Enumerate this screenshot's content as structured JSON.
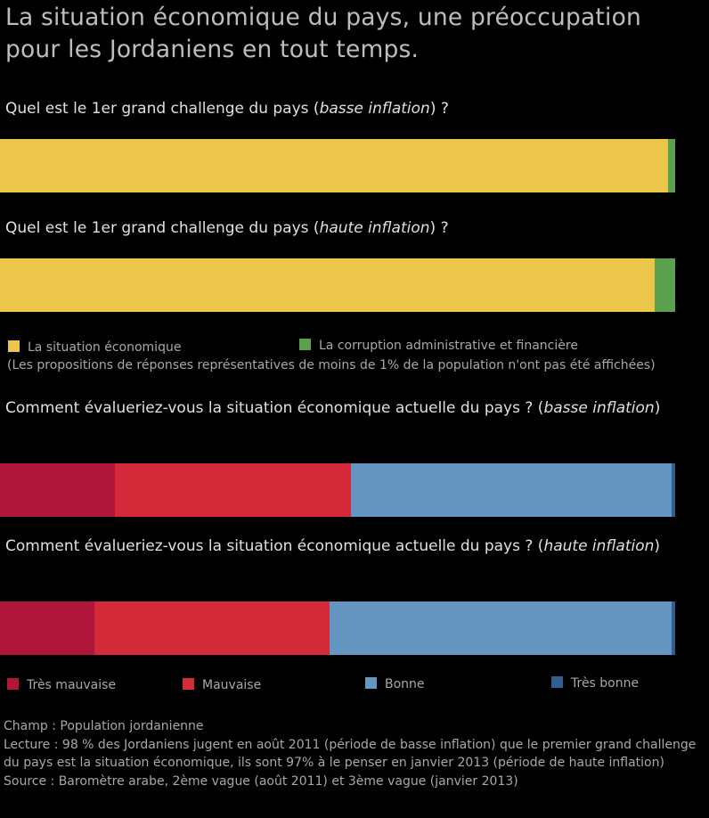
{
  "title": "La situation économique du pays, une préoccupation pour les Jordaniens en tout temps.",
  "q1": {
    "prefix": "Quel est le 1er grand challenge du pays (",
    "italic": "basse inflation",
    "suffix": ") ?"
  },
  "q2": {
    "prefix": "Quel est le 1er grand challenge du pays (",
    "italic": "haute inflation",
    "suffix": ") ?"
  },
  "q3": {
    "prefix": "Comment évalueriez-vous la situation économique actuelle du pays ? (",
    "italic": "basse inflation",
    "suffix": ")"
  },
  "q4": {
    "prefix": "Comment évalueriez-vous la situation économique actuelle du pays ? (",
    "italic": "haute inflation",
    "suffix": ")"
  },
  "legend1": {
    "items": [
      {
        "label": "La situation économique",
        "color": "#ebc64a"
      },
      {
        "label": "La corruption administrative et financière",
        "color": "#5aa04f"
      }
    ],
    "note": "(Les propositions de réponses représentatives de moins de 1% de la population n'ont pas été affichées)"
  },
  "legend2": {
    "items": [
      {
        "label": "Très mauvaise",
        "color": "#b0163a"
      },
      {
        "label": "Mauvaise",
        "color": "#d42a3a"
      },
      {
        "label": "Bonne",
        "color": "#6496c1"
      },
      {
        "label": "Très bonne",
        "color": "#2f5f8f"
      }
    ]
  },
  "footer": {
    "champ": "Champ : Population jordanienne",
    "lecture": "Lecture :  98 % des Jordaniens jugent en août 2011 (période de basse inflation) que le premier grand challenge du pays est la situation économique, ils sont 97% à le penser en janvier 2013 (période de haute inflation)",
    "source": "Source : Baromètre arabe, 2ème vague (août 2011) et 3ème vague (janvier 2013)"
  },
  "chart_data": [
    {
      "type": "bar",
      "orientation": "horizontal-stacked",
      "title": "Quel est le 1er grand challenge du pays (basse inflation) ?",
      "series": [
        {
          "name": "La situation économique",
          "values": [
            98
          ]
        },
        {
          "name": "La corruption administrative et financière",
          "values": [
            1
          ]
        }
      ],
      "colors": [
        "#ebc64a",
        "#5aa04f"
      ]
    },
    {
      "type": "bar",
      "orientation": "horizontal-stacked",
      "title": "Quel est le 1er grand challenge du pays (haute inflation) ?",
      "series": [
        {
          "name": "La situation économique",
          "values": [
            97
          ]
        },
        {
          "name": "La corruption administrative et financière",
          "values": [
            3
          ]
        }
      ],
      "colors": [
        "#ebc64a",
        "#5aa04f"
      ]
    },
    {
      "type": "bar",
      "orientation": "horizontal-stacked",
      "title": "Comment évalueriez-vous la situation économique actuelle du pays ? (basse inflation)",
      "series": [
        {
          "name": "Très mauvaise",
          "values": [
            17
          ]
        },
        {
          "name": "Mauvaise",
          "values": [
            35
          ]
        },
        {
          "name": "Bonne",
          "values": [
            47.5
          ]
        },
        {
          "name": "Très bonne",
          "values": [
            0.5
          ]
        }
      ],
      "colors": [
        "#b0163a",
        "#d42a3a",
        "#6496c1",
        "#2f5f8f"
      ]
    },
    {
      "type": "bar",
      "orientation": "horizontal-stacked",
      "title": "Comment évalueriez-vous la situation économique actuelle du pays ? (haute inflation)",
      "series": [
        {
          "name": "Très mauvaise",
          "values": [
            14
          ]
        },
        {
          "name": "Mauvaise",
          "values": [
            35
          ]
        },
        {
          "name": "Bonne",
          "values": [
            51
          ]
        },
        {
          "name": "Très bonne",
          "values": [
            0.5
          ]
        }
      ],
      "colors": [
        "#b0163a",
        "#d42a3a",
        "#6496c1",
        "#2f5f8f"
      ]
    }
  ]
}
